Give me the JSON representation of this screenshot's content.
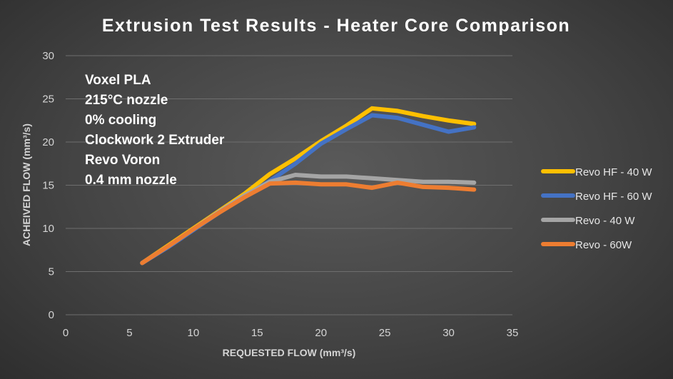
{
  "chart_data": {
    "type": "line",
    "title": "Extrusion Test Results - Heater Core Comparison",
    "xlabel": "REQUESTED FLOW (mm³/s)",
    "ylabel": "ACHEIVED FLOW (mm³/s)",
    "xlim": [
      0,
      35
    ],
    "ylim": [
      0,
      30
    ],
    "x_ticks": [
      "0",
      "5",
      "10",
      "15",
      "20",
      "25",
      "30",
      "35"
    ],
    "y_ticks": [
      "0",
      "5",
      "10",
      "15",
      "20",
      "25",
      "30"
    ],
    "grid": "horizontal",
    "legend_position": "right",
    "annotation": [
      "Voxel PLA",
      "215°C nozzle",
      "0% cooling",
      "Clockwork 2 Extruder",
      "Revo Voron",
      "0.4 mm nozzle"
    ],
    "series": [
      {
        "name": "Revo HF - 40 W",
        "color": "#FFC000",
        "points": [
          [
            6,
            6
          ],
          [
            8,
            8
          ],
          [
            10,
            10
          ],
          [
            12,
            12
          ],
          [
            14,
            14
          ],
          [
            16,
            16.3
          ],
          [
            18,
            18.1
          ],
          [
            20,
            20.1
          ],
          [
            22,
            21.9
          ],
          [
            24,
            23.9
          ],
          [
            26,
            23.6
          ],
          [
            28,
            23.0
          ],
          [
            30,
            22.5
          ],
          [
            32,
            22.1
          ]
        ]
      },
      {
        "name": "Revo HF - 60 W",
        "color": "#4472C4",
        "points": [
          [
            6,
            6
          ],
          [
            8,
            7.8
          ],
          [
            10,
            9.8
          ],
          [
            12,
            11.8
          ],
          [
            14,
            13.7
          ],
          [
            16,
            15.5
          ],
          [
            18,
            17.5
          ],
          [
            20,
            19.8
          ],
          [
            22,
            21.5
          ],
          [
            24,
            23.1
          ],
          [
            26,
            22.8
          ],
          [
            28,
            22.0
          ],
          [
            30,
            21.2
          ],
          [
            32,
            21.7
          ]
        ]
      },
      {
        "name": "Revo - 40 W",
        "color": "#A5A5A5",
        "points": [
          [
            6,
            6
          ],
          [
            8,
            7.9
          ],
          [
            10,
            9.9
          ],
          [
            12,
            11.9
          ],
          [
            14,
            13.8
          ],
          [
            16,
            15.4
          ],
          [
            18,
            16.2
          ],
          [
            20,
            16.0
          ],
          [
            22,
            16.0
          ],
          [
            24,
            15.8
          ],
          [
            26,
            15.6
          ],
          [
            28,
            15.4
          ],
          [
            30,
            15.4
          ],
          [
            32,
            15.3
          ]
        ]
      },
      {
        "name": "Revo - 60W",
        "color": "#ED7D31",
        "points": [
          [
            6,
            6
          ],
          [
            8,
            7.9
          ],
          [
            10,
            9.9
          ],
          [
            12,
            11.8
          ],
          [
            14,
            13.6
          ],
          [
            16,
            15.2
          ],
          [
            18,
            15.3
          ],
          [
            20,
            15.1
          ],
          [
            22,
            15.1
          ],
          [
            24,
            14.7
          ],
          [
            26,
            15.3
          ],
          [
            28,
            14.8
          ],
          [
            30,
            14.7
          ],
          [
            32,
            14.5
          ]
        ]
      }
    ]
  }
}
